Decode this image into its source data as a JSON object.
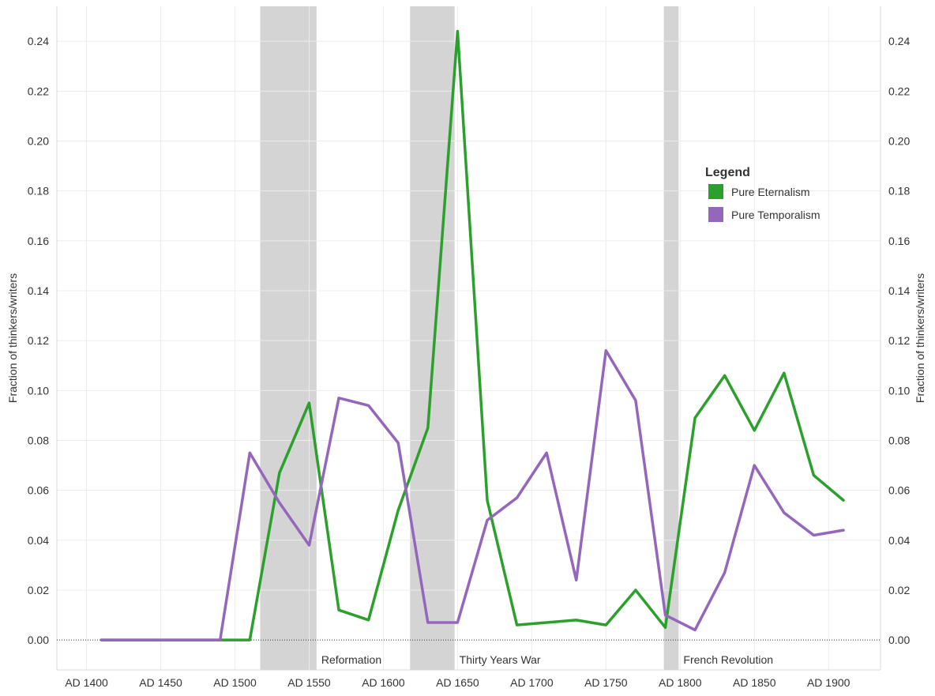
{
  "chart_data": {
    "type": "line",
    "ylabel_left": "Fraction of thinkers/writers",
    "ylabel_right": "Fraction of thinkers/writers",
    "ylim": [
      -0.012,
      0.254
    ],
    "xlim": [
      1380,
      1935
    ],
    "yticks": [
      0,
      0.02,
      0.04,
      0.06,
      0.08,
      0.1,
      0.12,
      0.14,
      0.16,
      0.18,
      0.2,
      0.22,
      0.24
    ],
    "ytick_labels": [
      "0.00",
      "0.02",
      "0.04",
      "0.06",
      "0.08",
      "0.10",
      "0.12",
      "0.14",
      "0.16",
      "0.18",
      "0.20",
      "0.22",
      "0.24"
    ],
    "xticks": [
      1400,
      1450,
      1500,
      1550,
      1600,
      1650,
      1700,
      1750,
      1800,
      1850,
      1900
    ],
    "xtick_labels": [
      "AD 1400",
      "AD 1450",
      "AD 1500",
      "AD 1550",
      "AD 1600",
      "AD 1650",
      "AD 1700",
      "AD 1750",
      "AD 1800",
      "AD 1850",
      "AD 1900"
    ],
    "grid": true,
    "zero_line": "dotted",
    "bands": [
      {
        "label": "Reformation",
        "start": 1517,
        "end": 1555,
        "color": "#d4d4d4"
      },
      {
        "label": "Thirty Years War",
        "start": 1618,
        "end": 1648,
        "color": "#d4d4d4"
      },
      {
        "label": "French Revolution",
        "start": 1789,
        "end": 1799,
        "color": "#d4d4d4"
      }
    ],
    "legend": {
      "title": "Legend",
      "position": "top-right"
    },
    "series": [
      {
        "name": "Pure Eternalism",
        "color": "#2ca02c",
        "points": [
          [
            1410,
            0.0
          ],
          [
            1430,
            0.0
          ],
          [
            1450,
            0.0
          ],
          [
            1470,
            0.0
          ],
          [
            1490,
            0.0
          ],
          [
            1510,
            0.0
          ],
          [
            1530,
            0.067
          ],
          [
            1550,
            0.095
          ],
          [
            1570,
            0.012
          ],
          [
            1590,
            0.008
          ],
          [
            1610,
            0.052
          ],
          [
            1630,
            0.085
          ],
          [
            1650,
            0.244
          ],
          [
            1670,
            0.056
          ],
          [
            1690,
            0.006
          ],
          [
            1710,
            0.007
          ],
          [
            1730,
            0.008
          ],
          [
            1750,
            0.006
          ],
          [
            1770,
            0.02
          ],
          [
            1790,
            0.005
          ],
          [
            1810,
            0.089
          ],
          [
            1830,
            0.106
          ],
          [
            1850,
            0.084
          ],
          [
            1870,
            0.107
          ],
          [
            1890,
            0.066
          ],
          [
            1910,
            0.056
          ]
        ]
      },
      {
        "name": "Pure Temporalism",
        "color": "#9467bd",
        "points": [
          [
            1410,
            0.0
          ],
          [
            1430,
            0.0
          ],
          [
            1450,
            0.0
          ],
          [
            1470,
            0.0
          ],
          [
            1490,
            0.0
          ],
          [
            1510,
            0.075
          ],
          [
            1530,
            0.055
          ],
          [
            1550,
            0.038
          ],
          [
            1570,
            0.097
          ],
          [
            1590,
            0.094
          ],
          [
            1610,
            0.079
          ],
          [
            1630,
            0.007
          ],
          [
            1650,
            0.007
          ],
          [
            1670,
            0.048
          ],
          [
            1690,
            0.057
          ],
          [
            1710,
            0.075
          ],
          [
            1730,
            0.024
          ],
          [
            1750,
            0.116
          ],
          [
            1770,
            0.096
          ],
          [
            1790,
            0.01
          ],
          [
            1810,
            0.004
          ],
          [
            1830,
            0.027
          ],
          [
            1850,
            0.07
          ],
          [
            1870,
            0.051
          ],
          [
            1890,
            0.042
          ],
          [
            1910,
            0.044
          ]
        ]
      }
    ]
  }
}
